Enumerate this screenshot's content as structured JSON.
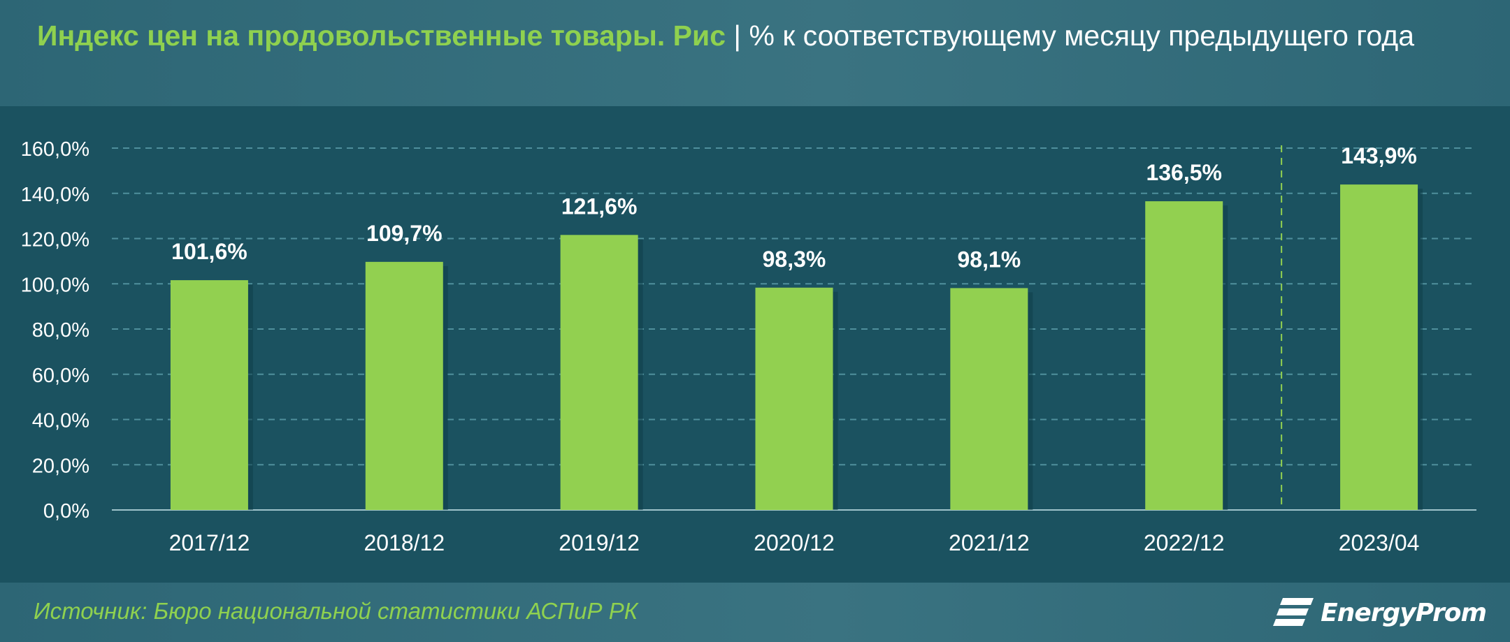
{
  "title": {
    "main": "Индекс цен на продовольственные товары. Рис",
    "separator": "|",
    "subtitle": "% к соответствующему месяцу предыдущего года"
  },
  "source": "Источник: Бюро национальной статистики АСПиР РК",
  "logo": {
    "text": "EnergyProm",
    "icon": "energyprom-logo-icon"
  },
  "colors": {
    "bar": "#92d050",
    "accent_text": "#8fd14f",
    "background": "#1b5260",
    "grid": "#4f8f9c",
    "text": "#ffffff"
  },
  "chart_data": {
    "type": "bar",
    "categories": [
      "2017/12",
      "2018/12",
      "2019/12",
      "2020/12",
      "2021/12",
      "2022/12",
      "2023/04"
    ],
    "values": [
      101.6,
      109.7,
      121.6,
      98.3,
      98.1,
      136.5,
      143.9
    ],
    "data_labels": [
      "101,6%",
      "109,7%",
      "121,6%",
      "98,3%",
      "98,1%",
      "136,5%",
      "143,9%"
    ],
    "y_ticks": [
      0,
      20,
      40,
      60,
      80,
      100,
      120,
      140,
      160
    ],
    "y_tick_labels": [
      "0,0%",
      "20,0%",
      "40,0%",
      "60,0%",
      "80,0%",
      "100,0%",
      "120,0%",
      "140,0%",
      "160,0%"
    ],
    "ylim": [
      0,
      160
    ],
    "grid": true,
    "grid_style": "dashed",
    "separator_after_index": 5,
    "title": "Индекс цен на продовольственные товары. Рис",
    "xlabel": "",
    "ylabel": ""
  }
}
